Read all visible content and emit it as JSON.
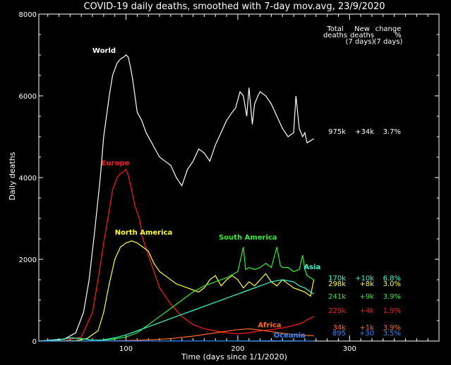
{
  "chart_data": {
    "type": "line",
    "title": "COVID-19 daily deaths, smoothed with 7-day mov.avg, 23/9/2020",
    "xlabel": "Time (days since 1/1/2020)",
    "ylabel": "Daily deaths",
    "xlim": [
      22,
      380
    ],
    "ylim": [
      0,
      8000
    ],
    "xticks": [
      100,
      200,
      300
    ],
    "yticks": [
      0,
      2000,
      4000,
      6000,
      8000
    ],
    "grid": false,
    "table_headers": [
      "Total deaths",
      "New deaths (7 days)",
      "change % (7 days)"
    ],
    "series": [
      {
        "name": "World",
        "color": "#ffffff",
        "total": "975k",
        "new": "+34k",
        "change": "3.7%",
        "label_x": 70,
        "label_y": 7050,
        "x": [
          22,
          45,
          55,
          62,
          67,
          72,
          77,
          80,
          85,
          88,
          92,
          95,
          98,
          100,
          102,
          104,
          106,
          108,
          110,
          114,
          118,
          122,
          126,
          130,
          135,
          140,
          145,
          150,
          155,
          160,
          165,
          170,
          175,
          180,
          185,
          190,
          195,
          198,
          200,
          202,
          205,
          208,
          210,
          213,
          215,
          218,
          220,
          225,
          230,
          235,
          240,
          245,
          250,
          252,
          255,
          258,
          260,
          262,
          265,
          268
        ],
        "y": [
          0,
          50,
          200,
          700,
          1500,
          2700,
          4000,
          5000,
          6000,
          6500,
          6800,
          6900,
          6950,
          7000,
          6950,
          6700,
          6400,
          6000,
          5600,
          5400,
          5100,
          4900,
          4700,
          4500,
          4400,
          4300,
          4000,
          3800,
          4200,
          4400,
          4700,
          4600,
          4400,
          4800,
          5100,
          5400,
          5600,
          5700,
          5900,
          6100,
          6000,
          5500,
          6200,
          5300,
          5800,
          6000,
          6100,
          6000,
          5800,
          5500,
          5200,
          5000,
          5100,
          6000,
          5200,
          5000,
          5100,
          4850,
          4900,
          4950
        ]
      },
      {
        "name": "Europe",
        "color": "#ff1a1a",
        "total": "229k",
        "new": "+4k",
        "change": "1.9%",
        "label_x": 78,
        "label_y": 4300,
        "x": [
          22,
          45,
          60,
          70,
          75,
          80,
          85,
          88,
          92,
          95,
          98,
          100,
          102,
          105,
          108,
          112,
          115,
          120,
          125,
          130,
          140,
          150,
          160,
          170,
          180,
          190,
          200,
          210,
          220,
          230,
          240,
          250,
          258,
          262,
          265,
          268
        ],
        "y": [
          0,
          10,
          100,
          700,
          1500,
          2400,
          3200,
          3700,
          4000,
          4100,
          4150,
          4200,
          4050,
          3700,
          3300,
          3000,
          2500,
          2100,
          1700,
          1300,
          900,
          600,
          400,
          300,
          250,
          200,
          180,
          200,
          250,
          280,
          320,
          380,
          450,
          520,
          560,
          600
        ]
      },
      {
        "name": "North America",
        "color": "#ffff33",
        "total": "298k",
        "new": "+8k",
        "change": "3.0%",
        "label_x": 90,
        "label_y": 2600,
        "x": [
          22,
          55,
          65,
          75,
          80,
          85,
          90,
          95,
          100,
          105,
          110,
          115,
          120,
          125,
          130,
          135,
          140,
          145,
          150,
          155,
          160,
          165,
          170,
          175,
          180,
          185,
          190,
          195,
          200,
          205,
          210,
          215,
          220,
          225,
          230,
          235,
          240,
          245,
          250,
          255,
          260,
          265,
          268
        ],
        "y": [
          0,
          10,
          60,
          250,
          700,
          1400,
          2000,
          2300,
          2400,
          2450,
          2400,
          2300,
          2200,
          1900,
          1700,
          1600,
          1500,
          1400,
          1350,
          1300,
          1250,
          1200,
          1300,
          1500,
          1600,
          1350,
          1500,
          1600,
          1500,
          1300,
          1450,
          1350,
          1500,
          1650,
          1450,
          1350,
          1500,
          1400,
          1300,
          1250,
          1200,
          1100,
          1500
        ]
      },
      {
        "name": "South America",
        "color": "#33ee33",
        "total": "241k",
        "new": "+9k",
        "change": "3.9%",
        "label_x": 183,
        "label_y": 2480,
        "x": [
          22,
          70,
          80,
          90,
          100,
          110,
          120,
          130,
          140,
          150,
          160,
          170,
          180,
          190,
          200,
          205,
          207,
          210,
          215,
          220,
          225,
          230,
          235,
          238,
          240,
          245,
          250,
          255,
          258,
          260,
          262,
          265,
          268
        ],
        "y": [
          0,
          0,
          20,
          50,
          100,
          200,
          400,
          600,
          800,
          1000,
          1200,
          1350,
          1450,
          1550,
          1700,
          2300,
          1750,
          1800,
          1750,
          1800,
          1900,
          1800,
          2300,
          1850,
          1800,
          1800,
          1700,
          1750,
          2100,
          1750,
          1600,
          1550,
          1500
        ]
      },
      {
        "name": "Asia",
        "color": "#33ffcc",
        "total": "170k",
        "new": "+10k",
        "change": "6.8%",
        "label_x": 259,
        "label_y": 1760,
        "x": [
          22,
          40,
          50,
          60,
          70,
          80,
          90,
          100,
          110,
          120,
          130,
          140,
          150,
          160,
          170,
          180,
          190,
          200,
          210,
          220,
          230,
          240,
          250,
          255,
          260,
          265,
          268
        ],
        "y": [
          0,
          30,
          80,
          60,
          20,
          30,
          80,
          150,
          250,
          350,
          450,
          550,
          650,
          750,
          850,
          950,
          1050,
          1150,
          1250,
          1350,
          1450,
          1500,
          1450,
          1350,
          1300,
          1200,
          1150
        ]
      },
      {
        "name": "Africa",
        "color": "#ff6622",
        "total": "34k",
        "new": "+1k",
        "change": "3.9%",
        "label_x": 218,
        "label_y": 340,
        "x": [
          22,
          80,
          100,
          120,
          140,
          160,
          180,
          200,
          210,
          220,
          230,
          240,
          250,
          260,
          268
        ],
        "y": [
          0,
          2,
          10,
          30,
          60,
          120,
          200,
          280,
          300,
          270,
          230,
          190,
          160,
          140,
          130
        ]
      },
      {
        "name": "Oceania",
        "color": "#3388ff",
        "total": "895",
        "new": "+30",
        "change": "3.5%",
        "label_x": 232,
        "label_y": 90,
        "x": [
          22,
          80,
          100,
          120,
          140,
          160,
          180,
          200,
          220,
          230,
          240,
          250,
          260,
          268
        ],
        "y": [
          0,
          1,
          3,
          2,
          1,
          1,
          2,
          4,
          6,
          7,
          6,
          5,
          4,
          4
        ]
      }
    ]
  }
}
